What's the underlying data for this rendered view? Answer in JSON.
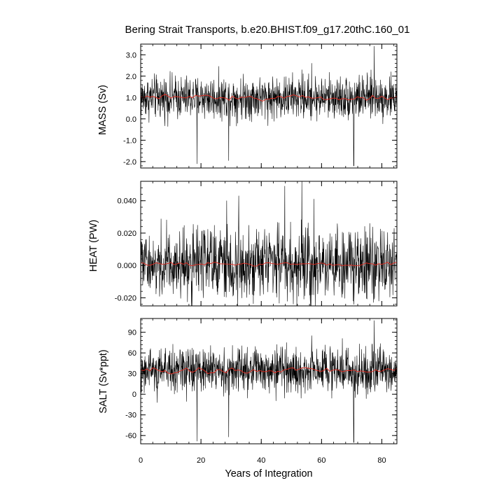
{
  "figure": {
    "title": "Bering Strait Transports, b.e20.BHIST.f09_g17.20thC.160_01",
    "xlabel": "Years of Integration"
  },
  "chart_data": [
    {
      "type": "line",
      "ylabel": "MASS (Sv)",
      "xlim": [
        0,
        85
      ],
      "ylim": [
        -2.3,
        3.5
      ],
      "xticks": [
        0,
        20,
        40,
        60,
        80
      ],
      "yticks": [
        -2.0,
        -1.0,
        0.0,
        1.0,
        2.0,
        3.0
      ],
      "ytick_labels": [
        "-2.0",
        "-1.0",
        "0.0",
        "1.0",
        "2.0",
        "3.0"
      ],
      "series": [
        {
          "role": "monthly",
          "color": "#000000",
          "base": 1.0,
          "noise": 0.5,
          "x_start": 0,
          "x_end": 85,
          "n": 1020
        },
        {
          "role": "annual-mean",
          "color": "#e8281e",
          "base": 1.0,
          "noise": 0.12,
          "x_start": 0,
          "x_end": 85,
          "n": 85
        }
      ],
      "extremes": [
        [
          18.7,
          -2.1
        ],
        [
          29.2,
          -1.95
        ],
        [
          70.7,
          -2.2
        ],
        [
          77.5,
          3.4
        ],
        [
          56.7,
          2.6
        ],
        [
          53.5,
          2.3
        ]
      ],
      "grid": false
    },
    {
      "type": "line",
      "ylabel": "HEAT (PW)",
      "xlim": [
        0,
        85
      ],
      "ylim": [
        -0.025,
        0.052
      ],
      "xticks": [
        0,
        20,
        40,
        60,
        80
      ],
      "yticks": [
        -0.02,
        0.0,
        0.02,
        0.04
      ],
      "ytick_labels": [
        "-0.020",
        "0.000",
        "0.020",
        "0.040"
      ],
      "series": [
        {
          "role": "monthly",
          "color": "#000000",
          "base": 0.001,
          "noise": 0.011,
          "x_start": 0,
          "x_end": 85,
          "n": 1020
        },
        {
          "role": "annual-mean",
          "color": "#e8281e",
          "base": 0.0008,
          "noise": 0.0012,
          "x_start": 0,
          "x_end": 85,
          "n": 85
        }
      ],
      "extremes": [
        [
          53.5,
          0.052
        ],
        [
          47.8,
          0.049
        ],
        [
          32.5,
          0.043
        ],
        [
          57.5,
          0.041
        ],
        [
          28.5,
          0.04
        ],
        [
          70.5,
          -0.022
        ]
      ],
      "grid": false
    },
    {
      "type": "line",
      "ylabel": "SALT (Sv*ppt)",
      "xlim": [
        0,
        85
      ],
      "ylim": [
        -72,
        110
      ],
      "xticks": [
        0,
        20,
        40,
        60,
        80
      ],
      "yticks": [
        -60,
        -30,
        0,
        30,
        60,
        90
      ],
      "ytick_labels": [
        "-60",
        "-30",
        "0",
        "30",
        "60",
        "90"
      ],
      "series": [
        {
          "role": "monthly",
          "color": "#000000",
          "base": 35,
          "noise": 17,
          "x_start": 0,
          "x_end": 85,
          "n": 1020
        },
        {
          "role": "annual-mean",
          "color": "#e8281e",
          "base": 35,
          "noise": 4,
          "x_start": 0,
          "x_end": 85,
          "n": 85
        }
      ],
      "extremes": [
        [
          18.7,
          -68
        ],
        [
          29.2,
          -62
        ],
        [
          70.7,
          -70
        ],
        [
          77.5,
          107
        ],
        [
          56.7,
          85
        ]
      ],
      "grid": false
    }
  ]
}
